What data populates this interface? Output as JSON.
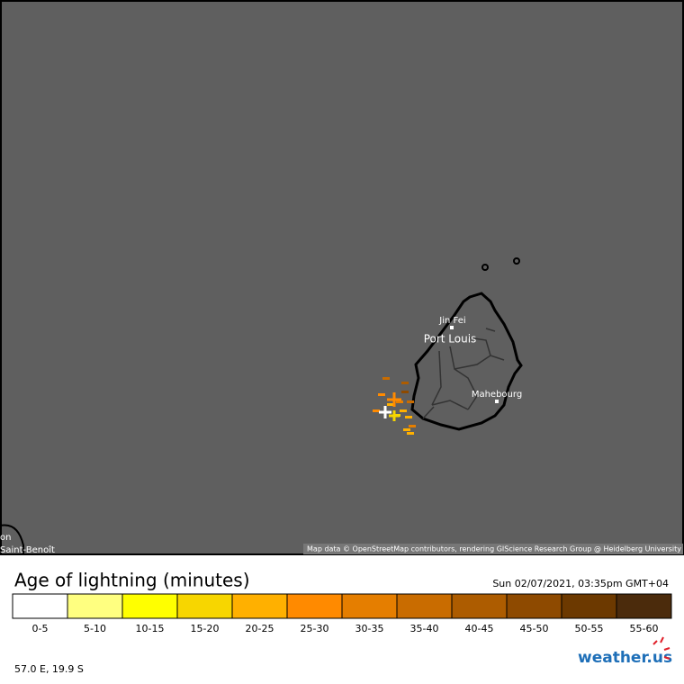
{
  "map": {
    "places": [
      {
        "label": "Jin Fei"
      },
      {
        "label": "Port Louis"
      },
      {
        "label": "Mahebourg"
      },
      {
        "label": "on"
      },
      {
        "label": "Saint-Benoît"
      }
    ],
    "attribution": "Map data © OpenStreetMap contributors, rendering GIScience Research Group @ Heidelberg University"
  },
  "legend": {
    "title": "Age of lightning (minutes)",
    "timestamp": "Sun 02/07/2021, 03:35pm GMT+04",
    "items": [
      {
        "label": "0-5",
        "color": "#ffffff"
      },
      {
        "label": "5-10",
        "color": "#ffff80"
      },
      {
        "label": "10-15",
        "color": "#ffff00"
      },
      {
        "label": "15-20",
        "color": "#f7d600"
      },
      {
        "label": "20-25",
        "color": "#ffb000"
      },
      {
        "label": "25-30",
        "color": "#ff8a00"
      },
      {
        "label": "30-35",
        "color": "#e57e00"
      },
      {
        "label": "35-40",
        "color": "#c96c00"
      },
      {
        "label": "40-45",
        "color": "#ad5c00"
      },
      {
        "label": "45-50",
        "color": "#8e4a00"
      },
      {
        "label": "50-55",
        "color": "#6c3900"
      },
      {
        "label": "55-60",
        "color": "#4b2b0c"
      }
    ]
  },
  "footer": {
    "coordinates": "57.0 E, 19.9 S",
    "logo": "weather.us"
  }
}
